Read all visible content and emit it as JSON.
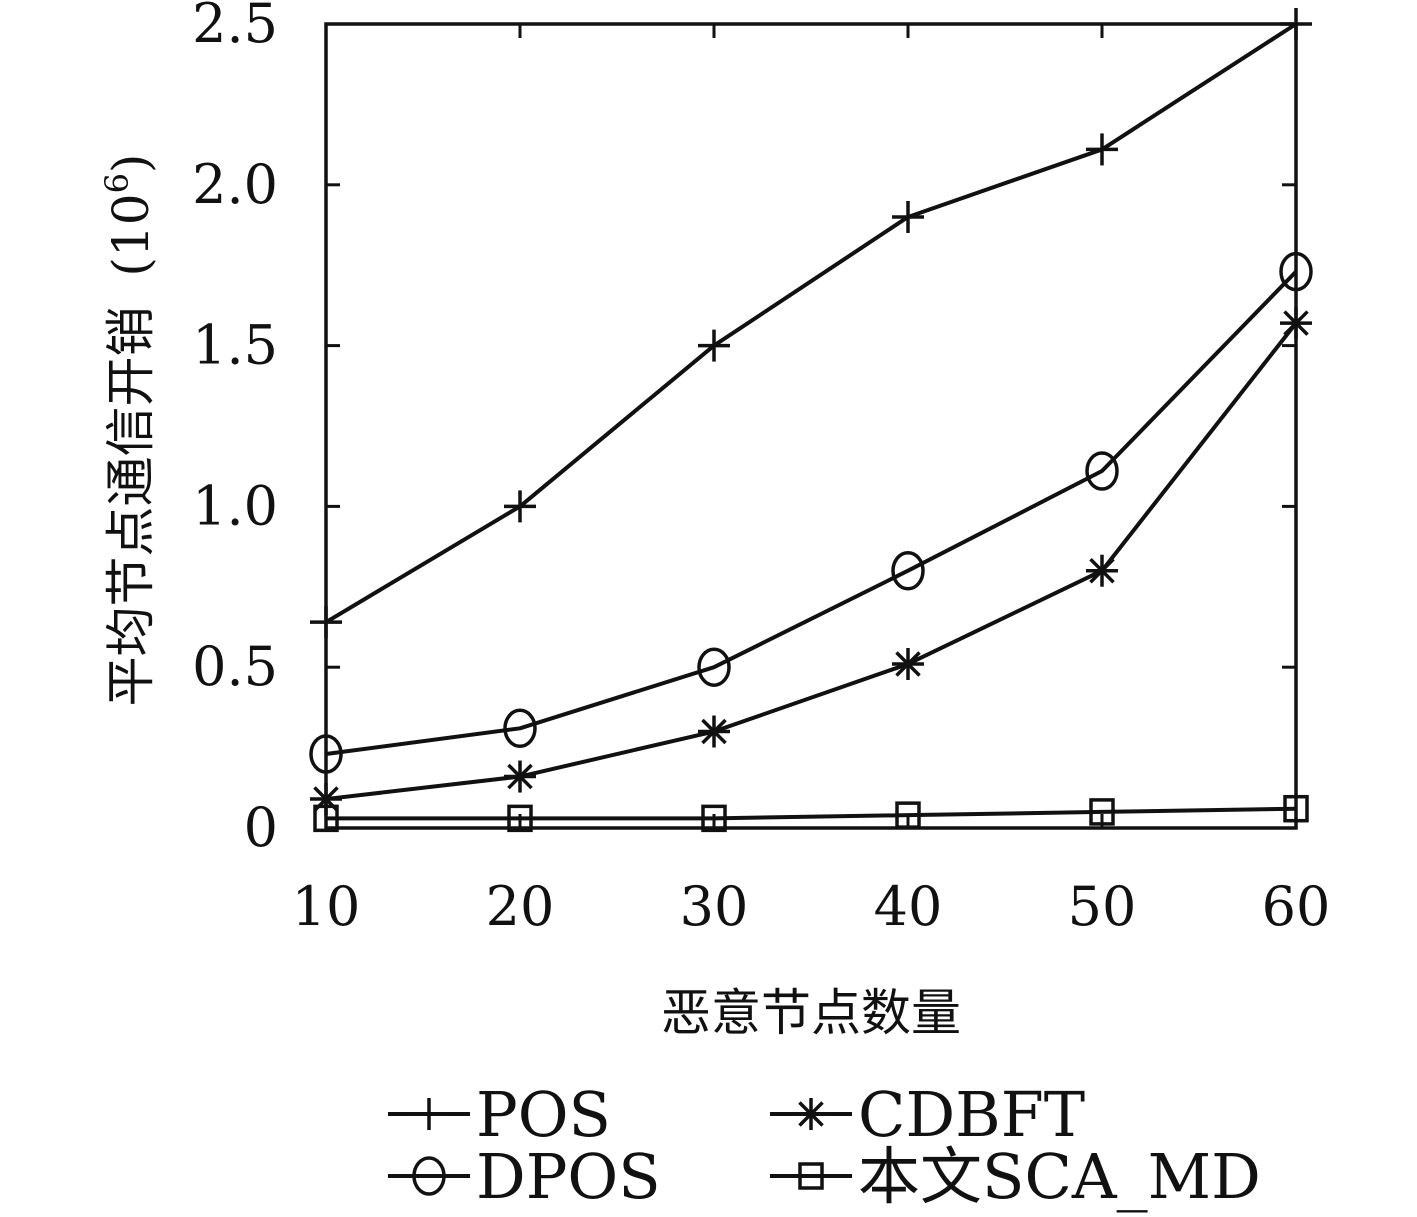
{
  "chart_data": {
    "type": "line",
    "title": "",
    "xlabel": "恶意节点数量",
    "ylabel": "平均节点通信开销",
    "ylabel_unit": "(10",
    "ylabel_unit_exp": "6",
    "ylabel_unit_close": ")",
    "x": [
      10,
      20,
      30,
      40,
      50,
      60
    ],
    "xlim": [
      10,
      60
    ],
    "ylim": [
      0,
      2.5
    ],
    "x_ticks": [
      "10",
      "20",
      "30",
      "40",
      "50",
      "60"
    ],
    "y_ticks": [
      {
        "value": 0,
        "label": "0"
      },
      {
        "value": 0.5,
        "label": "0.5"
      },
      {
        "value": 1.0,
        "label": "1.0"
      },
      {
        "value": 1.5,
        "label": "1.5"
      },
      {
        "value": 2.0,
        "label": "2.0"
      },
      {
        "value": 2.5,
        "label": "2.5"
      }
    ],
    "grid": false,
    "legend_position": "bottom",
    "series": [
      {
        "name": "POS",
        "marker": "plus",
        "values": [
          0.64,
          1.0,
          1.5,
          1.9,
          2.11,
          2.5
        ]
      },
      {
        "name": "CDBFT",
        "marker": "asterisk",
        "values": [
          0.09,
          0.16,
          0.3,
          0.51,
          0.8,
          1.57
        ]
      },
      {
        "name": "DPOS",
        "marker": "circle",
        "values": [
          0.23,
          0.31,
          0.5,
          0.8,
          1.11,
          1.73
        ]
      },
      {
        "name": "本文SCA_MD",
        "marker": "square",
        "values": [
          0.03,
          0.03,
          0.03,
          0.04,
          0.05,
          0.06
        ]
      }
    ]
  }
}
